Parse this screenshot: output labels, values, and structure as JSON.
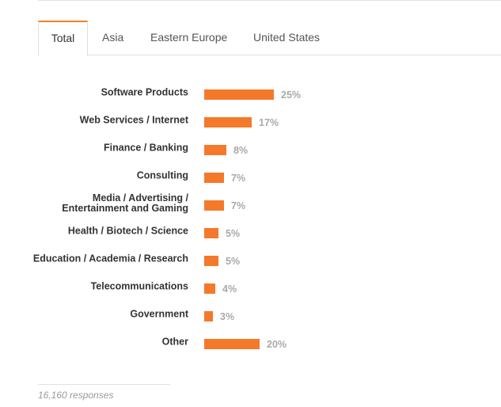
{
  "tabs": [
    {
      "label": "Total",
      "active": true
    },
    {
      "label": "Asia",
      "active": false
    },
    {
      "label": "Eastern Europe",
      "active": false
    },
    {
      "label": "United States",
      "active": false
    }
  ],
  "accent_color": "#f4792b",
  "chart_data": {
    "type": "bar",
    "orientation": "horizontal",
    "categories": [
      "Software Products",
      "Web Services / Internet",
      "Finance / Banking",
      "Consulting",
      "Media / Advertising / Entertainment and Gaming",
      "Health / Biotech / Science",
      "Education / Academia / Research",
      "Telecommunications",
      "Government",
      "Other"
    ],
    "values": [
      25,
      17,
      8,
      7,
      7,
      5,
      5,
      4,
      3,
      20
    ],
    "value_labels": [
      "25%",
      "17%",
      "8%",
      "7%",
      "7%",
      "5%",
      "5%",
      "4%",
      "3%",
      "20%"
    ],
    "unit": "%",
    "grid": false,
    "legend": "none"
  },
  "footer": {
    "responses": "16,160 responses"
  }
}
